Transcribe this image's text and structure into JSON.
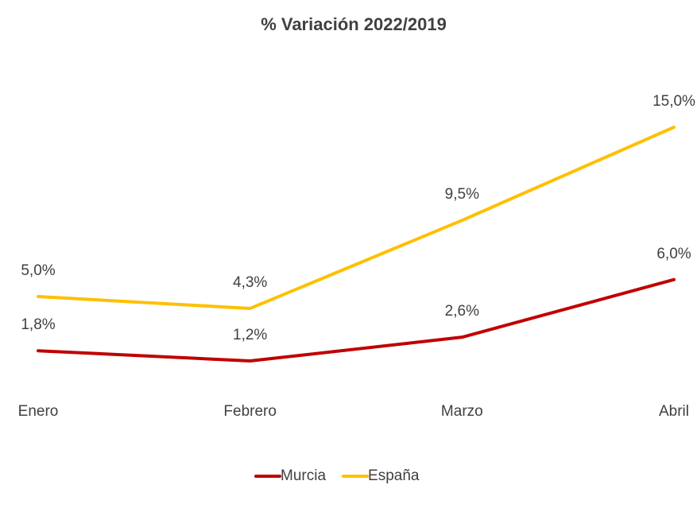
{
  "chart_data": {
    "type": "line",
    "title": "% Variación 2022/2019",
    "categories": [
      "Enero",
      "Febrero",
      "Marzo",
      "Abril"
    ],
    "series": [
      {
        "name": "Murcia",
        "color": "#c00000",
        "values": [
          1.8,
          1.2,
          2.6,
          6.0
        ],
        "value_labels": [
          "1,8%",
          "1,2%",
          "2,6%",
          "6,0%"
        ]
      },
      {
        "name": "España",
        "color": "#ffc000",
        "values": [
          5.0,
          4.3,
          9.5,
          15.0
        ],
        "value_labels": [
          "5,0%",
          "4,3%",
          "9,5%",
          "15,0%"
        ]
      }
    ]
  }
}
